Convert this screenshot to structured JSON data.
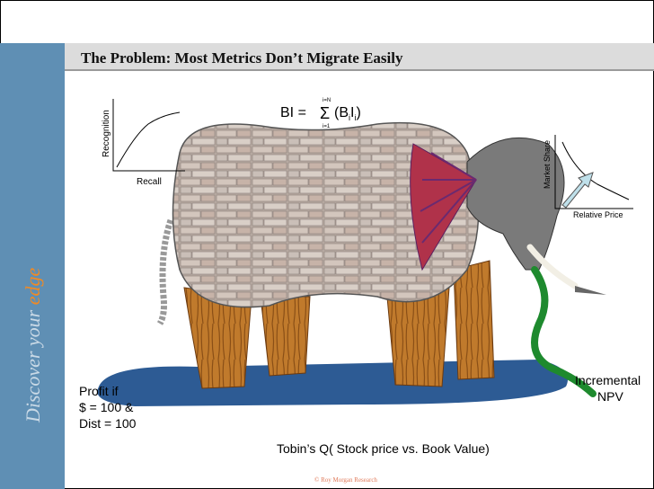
{
  "title": "The Problem: Most Metrics Don’t Migrate Easily",
  "sidebar": {
    "text": "Discover your",
    "accent": "edge"
  },
  "formula": {
    "lhs": "BI =",
    "sum": "Σ",
    "upper": "i=N",
    "lower": "i=1",
    "open": "(B",
    "sub1": "i",
    "mid": "I",
    "sub2": "i",
    "close": ")"
  },
  "chart_left": {
    "y_label": "Recognition",
    "x_label": "Recall"
  },
  "chart_right": {
    "y_label": "Market Share",
    "x_label": "Relative Price"
  },
  "annotations": {
    "profit": [
      "Profit if",
      "$ = 100 &",
      "Dist = 100"
    ],
    "npv": [
      "Incremental",
      "NPV"
    ],
    "tobin": "Tobin’s Q( Stock price vs. Book Value)"
  },
  "footer": "© Roy Morgan Research"
}
